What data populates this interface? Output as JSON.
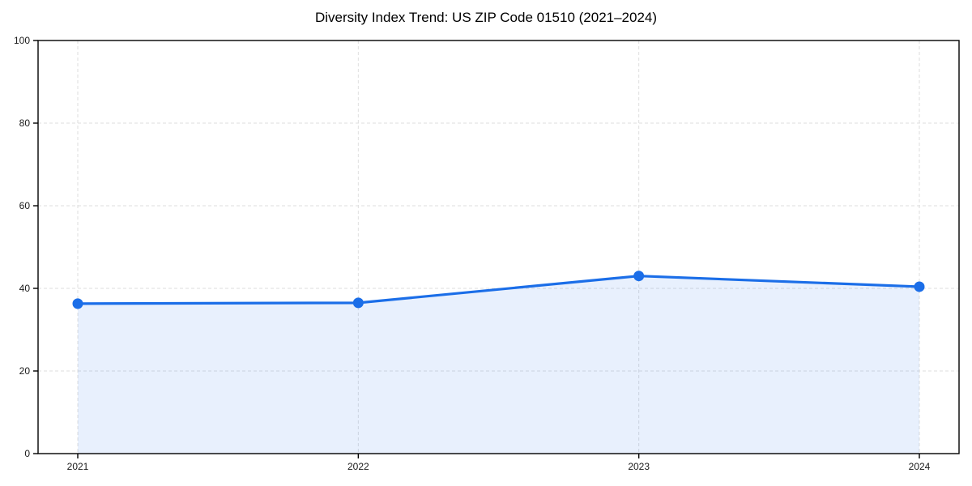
{
  "chart_data": {
    "type": "area",
    "title": "Diversity Index Trend: US ZIP Code 01510 (2021–2024)",
    "x": [
      2021,
      2022,
      2023,
      2024
    ],
    "series": [
      {
        "name": "Diversity Index",
        "values": [
          36.3,
          36.5,
          43.0,
          40.4
        ]
      }
    ],
    "xlabel": "",
    "ylabel": "",
    "ylim": [
      0,
      100
    ],
    "yticks": [
      0,
      20,
      40,
      60,
      80,
      100
    ],
    "xtick_labels": [
      "2021",
      "2022",
      "2023",
      "2024"
    ],
    "grid": "dashed, both axes",
    "legend_position": "none",
    "colors": {
      "line": "#1b6ee8",
      "marker": "#1b6ee8",
      "area_fill": "rgba(27,110,232,0.10)",
      "gridline": "#dedede",
      "spine": "#000000",
      "tick_text": "#1a1a1a",
      "background": "#ffffff"
    }
  }
}
